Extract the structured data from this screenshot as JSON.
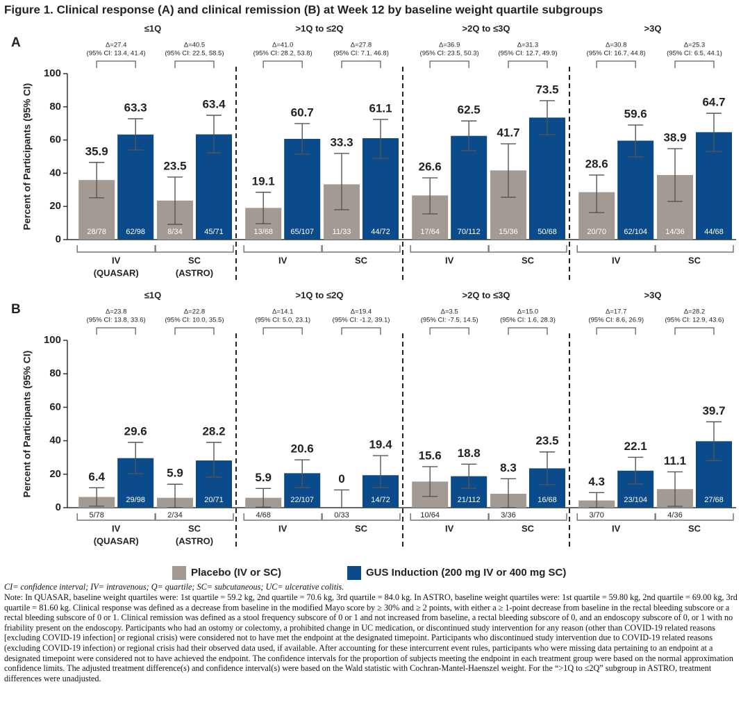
{
  "figure_title": "Figure 1. Clinical response (A) and clinical remission (B) at Week 12 by baseline weight quartile subgroups",
  "chart_data": [
    {
      "type": "bar",
      "panel": "A",
      "y_label": "Percent of Participants (95% CI)",
      "ylim": [
        0,
        100
      ],
      "yticks": [
        0,
        20,
        40,
        60,
        80,
        100
      ],
      "grid": false,
      "groups": [
        "≤1Q",
        ">1Q to ≤2Q",
        ">2Q to ≤3Q",
        ">3Q"
      ],
      "categories": [
        [
          "IV",
          "(QUASAR)"
        ],
        [
          "SC",
          "(ASTRO)"
        ],
        [
          "IV"
        ],
        [
          "SC"
        ],
        [
          "IV"
        ],
        [
          "SC"
        ],
        [
          "IV"
        ],
        [
          "SC"
        ]
      ],
      "annotations": [
        {
          "delta": "Δ=27.4",
          "ci": "(95% CI: 13.4, 41.4)"
        },
        {
          "delta": "Δ=40.5",
          "ci": "(95% CI: 22.5, 58.5)"
        },
        {
          "delta": "Δ=41.0",
          "ci": "(95% CI: 28.2, 53.8)"
        },
        {
          "delta": "Δ=27.8",
          "ci": "(95% CI: 7.1, 46.8)"
        },
        {
          "delta": "Δ=36.9",
          "ci": "(95% CI: 23.5, 50.3)"
        },
        {
          "delta": "Δ=31.3",
          "ci": "(95% CI: 12.7, 49.9)"
        },
        {
          "delta": "Δ=30.8",
          "ci": "(95% CI: 16.7, 44.8)"
        },
        {
          "delta": "Δ=25.3",
          "ci": "(95% CI: 6.5, 44.1)"
        }
      ],
      "series": [
        {
          "color": "#a39a93",
          "values": [
            35.9,
            23.5,
            19.1,
            33.3,
            26.6,
            41.7,
            28.6,
            38.9
          ],
          "ci_lower": [
            25.2,
            9.2,
            9.6,
            18.0,
            15.5,
            25.5,
            16.3,
            23.0
          ],
          "ci_upper": [
            46.5,
            37.7,
            28.5,
            51.9,
            37.2,
            57.7,
            38.9,
            54.8
          ],
          "counts": [
            "28/78",
            "8/34",
            "13/68",
            "11/33",
            "17/64",
            "15/36",
            "20/70",
            "14/36"
          ],
          "count_position": "inside"
        },
        {
          "color": "#0b4a8b",
          "values": [
            63.3,
            63.4,
            60.7,
            61.1,
            62.5,
            73.5,
            59.6,
            64.7
          ],
          "ci_lower": [
            54.0,
            52.3,
            51.5,
            49.0,
            53.6,
            63.2,
            49.8,
            53.1
          ],
          "ci_upper": [
            72.8,
            74.9,
            69.9,
            72.4,
            71.5,
            83.7,
            69.0,
            76.1
          ],
          "counts": [
            "62/98",
            "45/71",
            "65/107",
            "44/72",
            "70/112",
            "50/68",
            "62/104",
            "44/68"
          ],
          "count_position": "inside"
        }
      ]
    },
    {
      "type": "bar",
      "panel": "B",
      "y_label": "Percent of Participants (95% CI)",
      "ylim": [
        0,
        100
      ],
      "yticks": [
        0,
        20,
        40,
        60,
        80,
        100
      ],
      "grid": false,
      "legend": "bottom",
      "groups": [
        "≤1Q",
        ">1Q to ≤2Q",
        ">2Q to ≤3Q",
        ">3Q"
      ],
      "categories": [
        [
          "IV",
          "(QUASAR)"
        ],
        [
          "SC",
          "(ASTRO)"
        ],
        [
          "IV"
        ],
        [
          "SC"
        ],
        [
          "IV"
        ],
        [
          "SC"
        ],
        [
          "IV"
        ],
        [
          "SC"
        ]
      ],
      "annotations": [
        {
          "delta": "Δ=23.8",
          "ci": "(95% CI: 13.8, 33.6)"
        },
        {
          "delta": "Δ=22.8",
          "ci": "(95% CI: 10.0, 35.5)"
        },
        {
          "delta": "Δ=14.1",
          "ci": "(95% CI: 5.0, 23.1)"
        },
        {
          "delta": "Δ=19.4",
          "ci": "(95% CI: -1.2, 39.1)"
        },
        {
          "delta": "Δ=3.5",
          "ci": "(95% CI: -7.5, 14.5)"
        },
        {
          "delta": "Δ=15.0",
          "ci": "(95% CI: 1.6, 28.3)"
        },
        {
          "delta": "Δ=17.7",
          "ci": "(95% CI: 8.6, 26.9)"
        },
        {
          "delta": "Δ=28.2",
          "ci": "(95% CI: 12.9, 43.6)"
        }
      ],
      "series": [
        {
          "name": "Placebo (IV or SC)",
          "color": "#a39a93",
          "values": [
            6.4,
            5.9,
            5.9,
            0,
            15.6,
            8.3,
            4.3,
            11.1
          ],
          "ci_lower": [
            0.9,
            0,
            0.3,
            0,
            6.7,
            0,
            0,
            0.8
          ],
          "ci_upper": [
            11.9,
            14.0,
            11.5,
            10.6,
            24.5,
            17.3,
            9.0,
            21.4
          ],
          "counts": [
            "5/78",
            "2/34",
            "4/68",
            "0/33",
            "10/64",
            "3/36",
            "3/70",
            "4/36"
          ],
          "count_position": "below"
        },
        {
          "name": "GUS Induction (200 mg IV or 400 mg SC)",
          "color": "#0b4a8b",
          "values": [
            29.6,
            28.2,
            20.6,
            19.4,
            18.8,
            23.5,
            22.1,
            39.7
          ],
          "ci_lower": [
            20.3,
            18.3,
            12.0,
            12.0,
            11.6,
            13.7,
            14.2,
            28.1
          ],
          "ci_upper": [
            39.0,
            39.0,
            28.6,
            31.1,
            26.0,
            33.3,
            30.1,
            51.3
          ],
          "counts": [
            "29/98",
            "20/71",
            "22/107",
            "14/72",
            "21/112",
            "16/68",
            "23/104",
            "27/68"
          ],
          "count_position": "inside"
        }
      ]
    }
  ],
  "footnotes": {
    "abbreviations": "CI= confidence interval; IV= intravenous; Q= quartile; SC= subcutaneous; UC= ulcerative colitis.",
    "note": "Note: In QUASAR, baseline weight quartiles were: 1st quartile = 59.2 kg, 2nd quartile = 70.6 kg, 3rd quartile = 84.0 kg. In ASTRO, baseline weight quartiles were: 1st quartile = 59.80 kg, 2nd quartile = 69.00 kg, 3rd quartile = 81.60 kg. Clinical response was defined as a decrease from baseline in the modified Mayo score by ≥ 30% and ≥ 2 points, with either a ≥ 1-point decrease from baseline in the rectal bleeding subscore or a rectal bleeding subscore of 0 or 1. Clinical remission was defined as a stool frequency subscore of 0 or 1 and not increased from baseline, a rectal bleeding subscore of 0, and an endoscopy subscore of 0, or 1 with no friability present on the endoscopy. Participants who had an ostomy or colectomy, a prohibited change in UC medication, or discontinued study intervention for any reason (other than COVID-19 related reasons [excluding COVID-19 infection] or regional crisis) were considered not to have met the endpoint at the designated timepoint. Participants who discontinued study intervention due to COVID-19 related reasons (excluding COVID-19 infection) or regional crisis had their observed data used, if available. After accounting for these intercurrent event rules, participants who were missing data pertaining to an endpoint at a designated timepoint were considered not to have achieved the endpoint. The confidence intervals for the proportion of subjects meeting the endpoint in each treatment group were based on the normal approximation confidence limits. The adjusted treatment difference(s) and confidence interval(s) were based on the Wald statistic with Cochran-Mantel-Haenszel weight. For the “>1Q to ≤2Q” subgroup in ASTRO, treatment differences were unadjusted."
  }
}
